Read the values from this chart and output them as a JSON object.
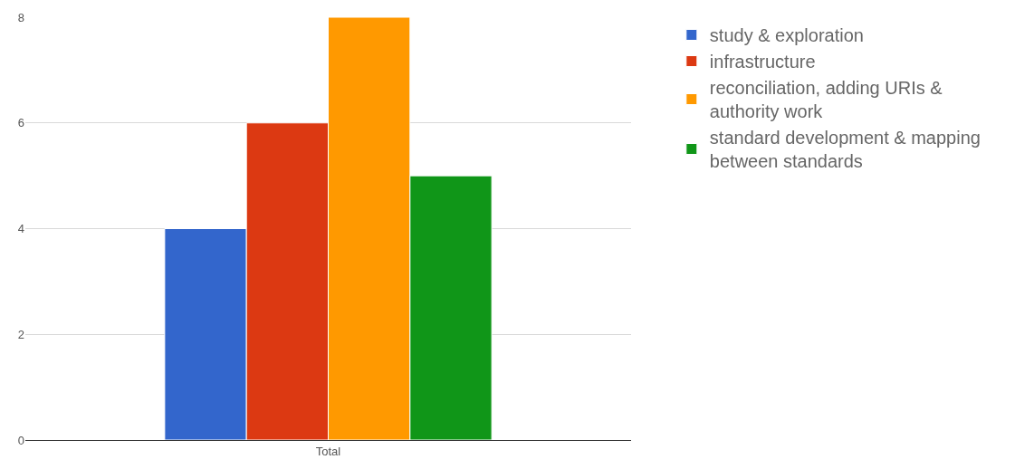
{
  "chart_data": {
    "type": "bar",
    "categories": [
      "Total"
    ],
    "series": [
      {
        "name": "study & exploration",
        "color": "#3366cc",
        "values": [
          4
        ]
      },
      {
        "name": "infrastructure",
        "color": "#dc3912",
        "values": [
          6
        ]
      },
      {
        "name": "reconciliation, adding URIs & authority work",
        "color": "#ff9900",
        "values": [
          8
        ]
      },
      {
        "name": "standard development & mapping between standards",
        "color": "#109618",
        "values": [
          5
        ]
      }
    ],
    "ylim": [
      0,
      8
    ],
    "yticks": [
      0,
      2,
      4,
      6,
      8
    ],
    "grid": "y",
    "legend": "top right"
  }
}
